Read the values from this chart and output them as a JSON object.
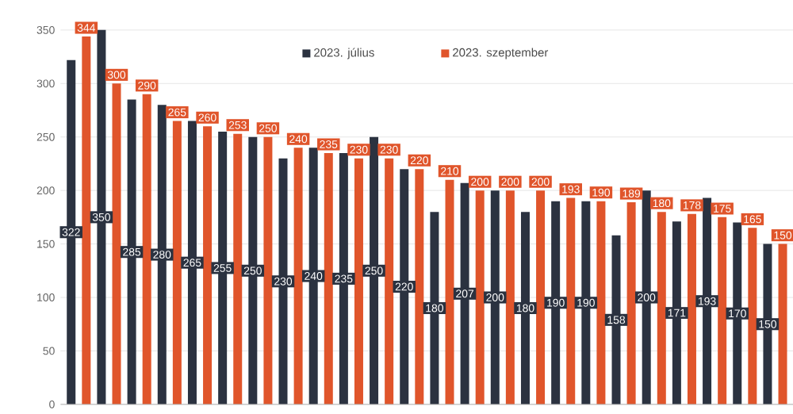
{
  "chart_data": {
    "type": "bar",
    "categories": [
      null,
      null,
      null,
      null,
      null,
      null,
      null,
      null,
      null,
      null,
      null,
      null,
      null,
      null,
      null,
      null,
      null,
      null,
      null,
      null,
      null,
      null,
      null,
      null
    ],
    "series": [
      {
        "name": "2023. július",
        "color": "#2b3240",
        "values": [
          322,
          350,
          285,
          280,
          265,
          255,
          250,
          230,
          240,
          235,
          250,
          220,
          180,
          207,
          200,
          180,
          190,
          190,
          158,
          200,
          171,
          193,
          170,
          150
        ]
      },
      {
        "name": "2023. szeptember",
        "color": "#e0552b",
        "values": [
          344,
          300,
          290,
          265,
          260,
          253,
          250,
          240,
          235,
          230,
          230,
          220,
          210,
          200,
          200,
          200,
          193,
          190,
          189,
          180,
          178,
          175,
          165,
          150
        ]
      }
    ],
    "ylim": [
      0,
      350
    ],
    "yticks": [
      0,
      50,
      100,
      150,
      200,
      250,
      300,
      350
    ],
    "grid": "y",
    "legend": "top",
    "data_labels": true
  }
}
